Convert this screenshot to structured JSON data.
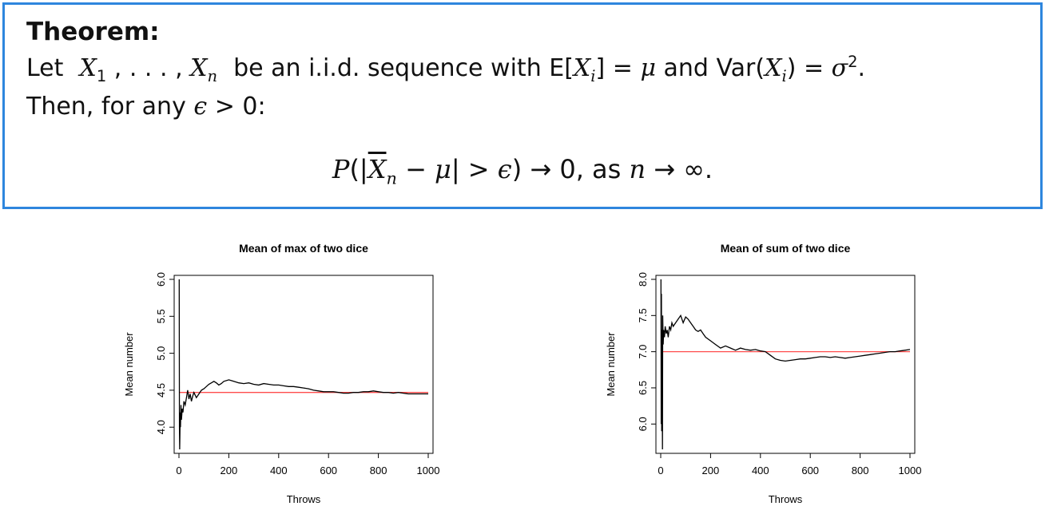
{
  "theorem": {
    "title": "Theorem:",
    "line1": {
      "let": "Let",
      "x1": "X",
      "s1": "1",
      "dots": ", . . . ,",
      "xn": "X",
      "sn": "n",
      "mid": "be an i.i.d. sequence with E[",
      "xi": "X",
      "si": "i",
      "eq": "] =",
      "mu": "μ",
      "and": "and Var(",
      "xi2": "X",
      "si2": "i",
      "eq2": ") =",
      "sigma": "σ",
      "sup": "2",
      "end": "."
    },
    "line2": {
      "text": "Then, for any",
      "eps": "ϵ",
      "rest": "> 0:"
    },
    "formula": {
      "p": "P",
      "open": "(|",
      "xbar": "X",
      "sub": "n",
      "minus": "−",
      "mu": "μ",
      "gt": "| >",
      "eps": "ϵ",
      "arrow": ") → 0, as",
      "n": "n",
      "inf": "→ ∞."
    }
  },
  "chart_data": [
    {
      "type": "line",
      "title": "Mean of max of two dice",
      "xlabel": "Throws",
      "ylabel": "Mean number",
      "xlim": [
        0,
        1000
      ],
      "ylim": [
        3.7,
        6.0
      ],
      "x_ticks": [
        0,
        200,
        400,
        600,
        800,
        1000
      ],
      "y_ticks": [
        "4.0",
        "4.5",
        "5.0",
        "5.5",
        "6.0"
      ],
      "y_tick_values": [
        4.0,
        4.5,
        5.0,
        5.5,
        6.0
      ],
      "reference_line": 4.47,
      "reference_color": "#ff4d4d",
      "series_color": "#000000",
      "series": [
        {
          "x": [
            1,
            2,
            3,
            4,
            5,
            6,
            8,
            10,
            13,
            16,
            20,
            25,
            30,
            35,
            40,
            45,
            50,
            55,
            60,
            70,
            80,
            90,
            100,
            110,
            120,
            130,
            140,
            150,
            160,
            170,
            180,
            200,
            220,
            240,
            260,
            280,
            300,
            320,
            340,
            360,
            380,
            400,
            420,
            440,
            460,
            480,
            500,
            520,
            540,
            560,
            580,
            600,
            620,
            640,
            660,
            680,
            700,
            720,
            740,
            760,
            780,
            800,
            820,
            840,
            860,
            880,
            900,
            920,
            940,
            960,
            980,
            1000
          ],
          "y": [
            6.0,
            4.0,
            3.7,
            3.9,
            4.2,
            4.0,
            4.3,
            4.1,
            4.25,
            4.2,
            4.35,
            4.3,
            4.4,
            4.5,
            4.38,
            4.45,
            4.35,
            4.42,
            4.47,
            4.4,
            4.45,
            4.5,
            4.52,
            4.55,
            4.58,
            4.6,
            4.62,
            4.6,
            4.57,
            4.59,
            4.62,
            4.64,
            4.62,
            4.6,
            4.59,
            4.6,
            4.58,
            4.57,
            4.59,
            4.58,
            4.57,
            4.57,
            4.56,
            4.55,
            4.55,
            4.54,
            4.53,
            4.52,
            4.5,
            4.49,
            4.48,
            4.48,
            4.48,
            4.47,
            4.46,
            4.46,
            4.47,
            4.47,
            4.48,
            4.48,
            4.49,
            4.48,
            4.47,
            4.47,
            4.46,
            4.47,
            4.46,
            4.45,
            4.45,
            4.45,
            4.45,
            4.45
          ]
        }
      ]
    },
    {
      "type": "line",
      "title": "Mean of sum of two dice",
      "xlabel": "Throws",
      "ylabel": "Mean number",
      "xlim": [
        0,
        1000
      ],
      "ylim": [
        5.65,
        8.0
      ],
      "x_ticks": [
        0,
        200,
        400,
        600,
        800,
        1000
      ],
      "y_ticks": [
        "6.0",
        "6.5",
        "7.0",
        "7.5",
        "8.0"
      ],
      "y_tick_values": [
        6.0,
        6.5,
        7.0,
        7.5,
        8.0
      ],
      "reference_line": 7.0,
      "reference_color": "#ff4d4d",
      "series_color": "#000000",
      "series": [
        {
          "x": [
            1,
            2,
            3,
            4,
            5,
            6,
            7,
            8,
            10,
            12,
            15,
            18,
            22,
            26,
            30,
            35,
            40,
            45,
            50,
            60,
            70,
            80,
            90,
            100,
            110,
            120,
            130,
            140,
            150,
            160,
            170,
            180,
            200,
            220,
            240,
            260,
            280,
            300,
            320,
            340,
            360,
            380,
            400,
            420,
            440,
            460,
            480,
            500,
            520,
            540,
            560,
            580,
            600,
            620,
            640,
            660,
            680,
            700,
            720,
            740,
            760,
            780,
            800,
            820,
            840,
            860,
            880,
            900,
            920,
            940,
            960,
            980,
            1000
          ],
          "y": [
            8.0,
            6.0,
            7.8,
            5.9,
            7.3,
            6.3,
            5.65,
            7.5,
            7.1,
            7.3,
            7.2,
            7.35,
            7.25,
            7.3,
            7.2,
            7.35,
            7.3,
            7.4,
            7.35,
            7.4,
            7.45,
            7.5,
            7.4,
            7.48,
            7.45,
            7.4,
            7.35,
            7.3,
            7.28,
            7.3,
            7.25,
            7.2,
            7.15,
            7.1,
            7.05,
            7.08,
            7.05,
            7.02,
            7.05,
            7.03,
            7.02,
            7.03,
            7.01,
            7.0,
            6.95,
            6.9,
            6.88,
            6.87,
            6.88,
            6.89,
            6.9,
            6.9,
            6.91,
            6.92,
            6.93,
            6.93,
            6.92,
            6.93,
            6.92,
            6.91,
            6.92,
            6.93,
            6.94,
            6.95,
            6.96,
            6.97,
            6.98,
            6.99,
            7.0,
            7.0,
            7.01,
            7.02,
            7.03
          ]
        }
      ]
    }
  ]
}
